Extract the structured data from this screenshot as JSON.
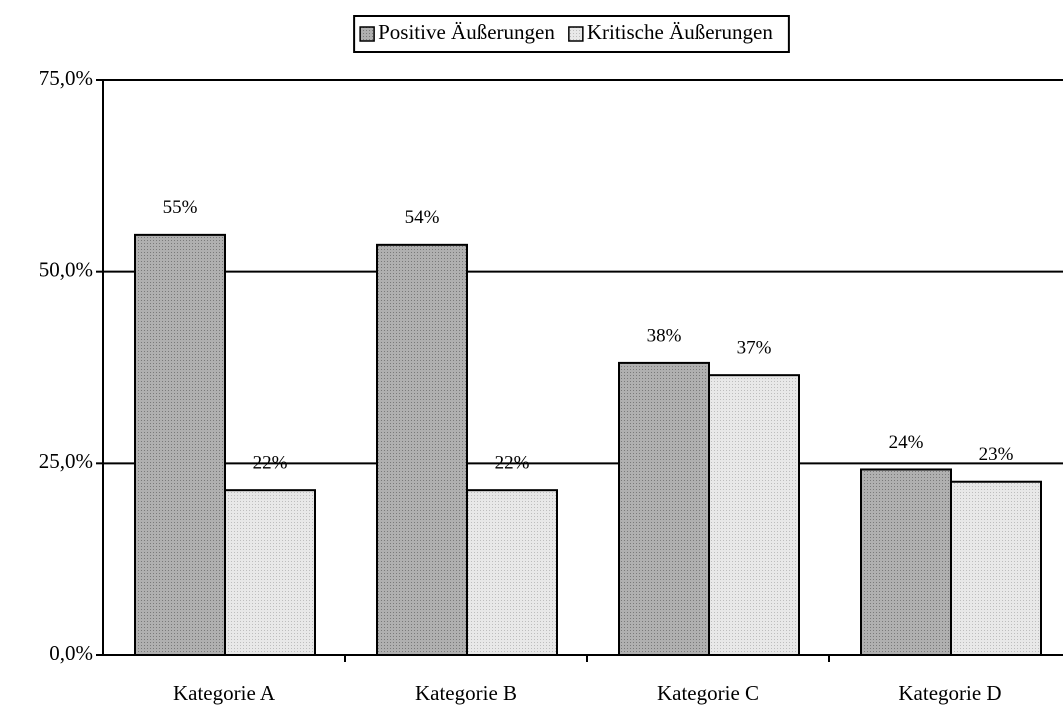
{
  "chart_data": {
    "type": "bar",
    "categories": [
      "Kategorie A",
      "Kategorie B",
      "Kategorie C",
      "Kategorie D"
    ],
    "series": [
      {
        "name": "Positive Äußerungen",
        "color": "#a6a6a6",
        "values": [
          54.8,
          53.5,
          38.1,
          24.2
        ],
        "value_labels": [
          "55%",
          "54%",
          "38%",
          "24%"
        ]
      },
      {
        "name": "Kritische Äußerungen",
        "color": "#e0e0e0",
        "values": [
          21.5,
          21.5,
          36.5,
          22.6
        ],
        "value_labels": [
          "22%",
          "22%",
          "37%",
          "23%"
        ]
      }
    ],
    "ylim": [
      0,
      75
    ],
    "yticks": [
      {
        "value": 0,
        "label": "0,0%"
      },
      {
        "value": 25,
        "label": "25,0%"
      },
      {
        "value": 50,
        "label": "50,0%"
      },
      {
        "value": 75,
        "label": "75,0%"
      }
    ],
    "grid": true,
    "legend": "top"
  }
}
